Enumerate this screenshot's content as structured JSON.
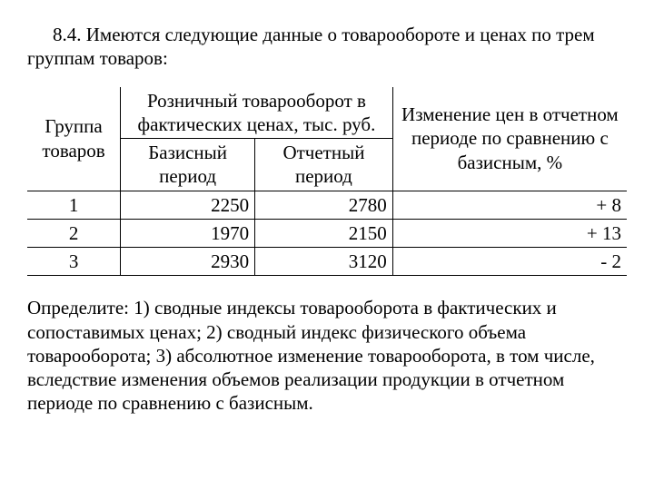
{
  "intro": "8.4.  Имеются следующие данные о товарообороте и ценах по трем группам товаров:",
  "table": {
    "col_group": "Группа товаров",
    "col_turnover": "Розничный товарооборот в фактических ценах, тыс. руб.",
    "col_base": "Базисный период",
    "col_report": "Отчетный период",
    "col_change": "Изменение цен в отчетном периоде по сравнению с базисным, %",
    "rows": [
      {
        "g": "1",
        "b": "2250",
        "r": "2780",
        "c": "+ 8"
      },
      {
        "g": "2",
        "b": "1970",
        "r": "2150",
        "c": "+ 13"
      },
      {
        "g": "3",
        "b": "2930",
        "r": "3120",
        "c": "- 2"
      }
    ]
  },
  "outro": "Определите: 1) сводные индексы товарооборота в фактических и сопоставимых ценах; 2) сводный индекс физического объема товарооборота; 3) абсолютное изменение товарооборота, в том числе, вследствие изменения объемов реализации продукции в отчетном периоде по сравнению с базисным."
}
